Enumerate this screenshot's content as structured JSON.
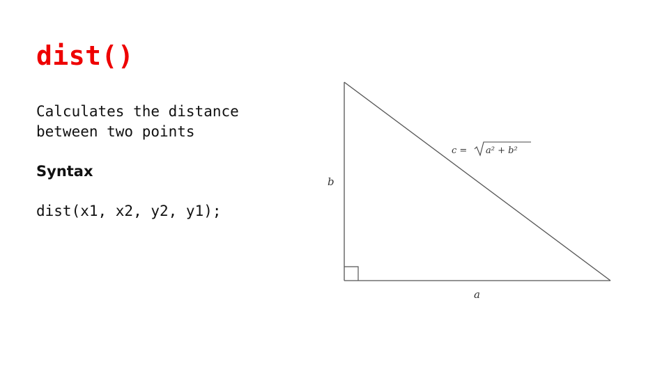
{
  "slide": {
    "title": "dist()",
    "description": "Calculates the distance between two points",
    "syntax_heading": "Syntax",
    "syntax_code": "dist(x1, x2, y2, y1);"
  },
  "diagram": {
    "label_b": "b",
    "label_a": "a",
    "formula_c": "c =",
    "formula_radicand": "a² + b²"
  },
  "colors": {
    "title": "#ee0000",
    "text": "#111111",
    "line": "#555555"
  }
}
